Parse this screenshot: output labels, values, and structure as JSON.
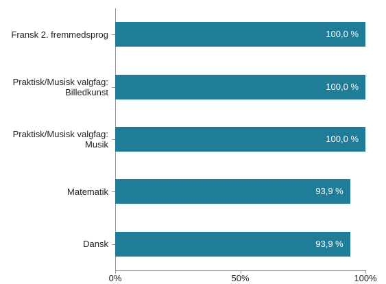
{
  "chart_data": {
    "type": "bar",
    "orientation": "horizontal",
    "categories": [
      "Fransk 2. fremmedsprog",
      "Praktisk/Musisk valgfag: Billedkunst",
      "Praktisk/Musisk valgfag: Musik",
      "Matematik",
      "Dansk"
    ],
    "values": [
      100,
      100,
      100,
      93.9,
      93.9
    ],
    "value_labels": [
      "100,0 %",
      "100,0 %",
      "100,0 %",
      "93,9 %",
      "93,9 %"
    ],
    "color": "#1f7d97",
    "xlim": [
      0,
      100
    ],
    "xticks": [
      {
        "value": 0,
        "label": "0%"
      },
      {
        "value": 50,
        "label": "50%"
      },
      {
        "value": 100,
        "label": "100%"
      }
    ]
  }
}
